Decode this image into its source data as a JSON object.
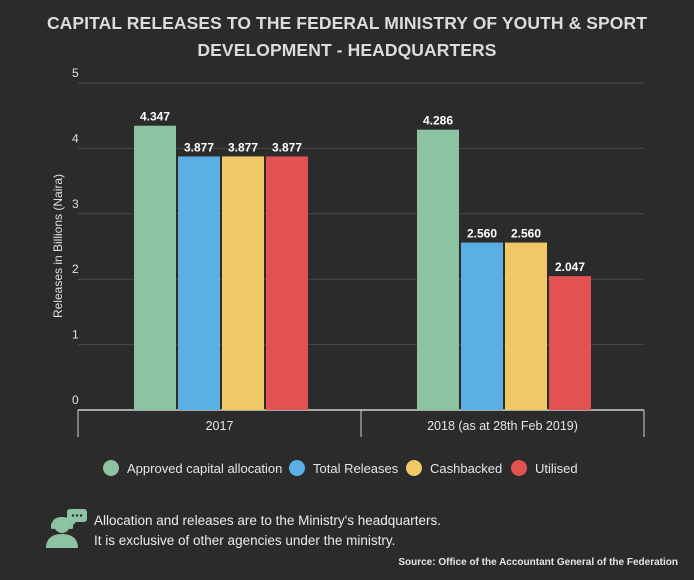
{
  "title": {
    "line1": "CAPITAL RELEASES TO THE FEDERAL MINISTRY OF YOUTH & SPORT",
    "line2": "DEVELOPMENT - HEADQUARTERS"
  },
  "chart_data": {
    "type": "bar",
    "categories": [
      "2017",
      "2018 (as at 28th Feb 2019)"
    ],
    "series": [
      {
        "name": "Approved capital allocation",
        "values": [
          4.347,
          4.286
        ],
        "color": "#8cc3a2"
      },
      {
        "name": "Total Releases",
        "values": [
          3.877,
          2.56
        ],
        "color": "#5aafe3"
      },
      {
        "name": "Cashbacked",
        "values": [
          3.877,
          2.56
        ],
        "color": "#f0c866"
      },
      {
        "name": "Utilised",
        "values": [
          3.877,
          2.047
        ],
        "color": "#e35252"
      }
    ],
    "ylabel": "Releases in Billions (Naira)",
    "xlabel": "",
    "ylim": [
      0,
      5
    ],
    "yticks": [
      0,
      1,
      2,
      3,
      4,
      5
    ],
    "grid": true,
    "legend_position": "bottom"
  },
  "legend": {
    "items": [
      {
        "label": "Approved capital allocation",
        "color": "#8cc3a2"
      },
      {
        "label": "Total Releases",
        "color": "#5aafe3"
      },
      {
        "label": "Cashbacked",
        "color": "#f0c866"
      },
      {
        "label": "Utilised",
        "color": "#e35252"
      }
    ]
  },
  "note": {
    "line1": "Allocation and releases are to the Ministry's headquarters.",
    "line2": "It is exclusive of other agencies under the ministry.",
    "icon": "person-speech-icon"
  },
  "source": "Source: Office of the Accountant General of  the Federation",
  "colors": {
    "background": "#2b2b2b",
    "icon": "#8cc3a2"
  }
}
